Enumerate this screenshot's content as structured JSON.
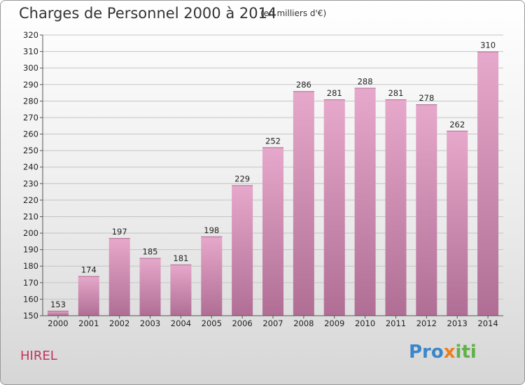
{
  "chart_data": {
    "type": "bar",
    "title": "Charges de Personnel 2000 à 2014",
    "subtitle": "(en milliers d'€)",
    "categories": [
      "2000",
      "2001",
      "2002",
      "2003",
      "2004",
      "2005",
      "2006",
      "2007",
      "2008",
      "2009",
      "2010",
      "2011",
      "2012",
      "2013",
      "2014"
    ],
    "values": [
      153,
      174,
      197,
      185,
      181,
      198,
      229,
      252,
      286,
      281,
      288,
      281,
      278,
      262,
      310
    ],
    "ylim": [
      150,
      320
    ],
    "yticks": [
      150,
      160,
      170,
      180,
      190,
      200,
      210,
      220,
      230,
      240,
      250,
      260,
      270,
      280,
      290,
      300,
      310,
      320
    ],
    "xlabel": "",
    "ylabel": "",
    "grid": true,
    "colors": {
      "bar_top": "#e6a8cb",
      "bar_bottom": "#b06e94",
      "commune": "#c8315f"
    }
  },
  "commune": "HIREL",
  "logo": {
    "text_before": "Pro",
    "text_x": "x",
    "text_after": "iti"
  }
}
